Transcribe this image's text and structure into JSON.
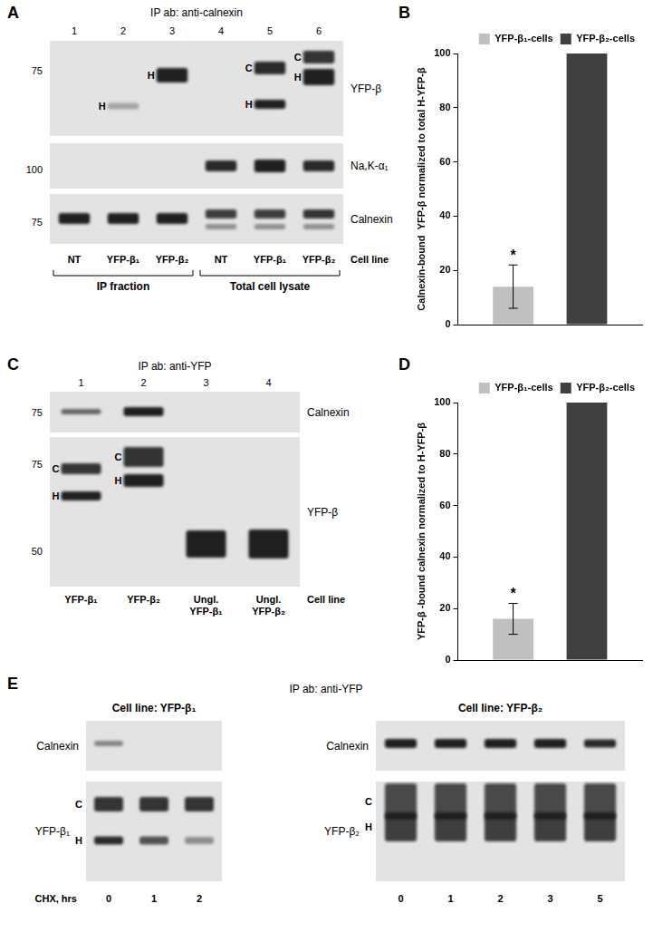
{
  "panels": [
    {
      "letter": "A",
      "title": "IP ab: anti-calnexin",
      "lanes": [
        1,
        2,
        3,
        4,
        5,
        6
      ],
      "strips": [
        {
          "name": "YFP-β",
          "markers": [
            75
          ],
          "band_lanes": [
            2,
            3,
            5,
            6
          ],
          "band_letters": [
            [],
            [
              "H"
            ],
            [
              "H"
            ],
            [],
            [
              "C",
              "H"
            ],
            [
              "C",
              "H"
            ]
          ]
        },
        {
          "name": "Na,K-α₁",
          "markers": [
            100
          ],
          "band_lanes": [
            4,
            5,
            6
          ]
        },
        {
          "name": "Calnexin",
          "markers": [
            75
          ],
          "band_lanes": [
            1,
            2,
            3,
            4,
            5,
            6
          ]
        }
      ],
      "cell_lines": [
        "NT",
        "YFP-β₁",
        "YFP-β₂",
        "NT",
        "YFP-β₁",
        "YFP-β₂"
      ],
      "cell_line_label": "Cell line",
      "groups": [
        {
          "label": "IP fraction",
          "lanes": [
            1,
            2,
            3
          ]
        },
        {
          "label": "Total cell lysate",
          "lanes": [
            4,
            5,
            6
          ]
        }
      ]
    },
    {
      "letter": "C",
      "title": "IP ab: anti-YFP",
      "lanes": [
        1,
        2,
        3,
        4
      ],
      "strips": [
        {
          "name": "Calnexin",
          "markers": [
            75
          ],
          "band_lanes": [
            1,
            2
          ]
        },
        {
          "name": "YFP-β",
          "markers": [
            75,
            50
          ],
          "band_lanes": [
            1,
            2,
            3,
            4
          ],
          "band_letters": [
            [
              "C",
              "H"
            ],
            [
              "C",
              "H"
            ],
            [],
            []
          ]
        }
      ],
      "cell_lines": [
        "YFP-β₁",
        "YFP-β₂",
        "Ungl. YFP-β₁",
        "Ungl. YFP-β₂"
      ],
      "cell_line_label": "Cell line"
    },
    {
      "letter": "E",
      "title": "IP ab: anti-YFP",
      "time_label": "CHX, hrs",
      "blots": [
        {
          "title": "Cell line: YFP-β₁",
          "times": [
            0,
            1,
            2
          ],
          "strips": [
            {
              "name": "Calnexin",
              "band_lanes": [
                1
              ]
            },
            {
              "name": "YFP-β₁",
              "band_lanes": [
                1,
                2,
                3
              ],
              "letters": [
                "C",
                "H"
              ]
            }
          ]
        },
        {
          "title": "Cell line: YFP-β₂",
          "times": [
            0,
            1,
            2,
            3,
            5
          ],
          "strips": [
            {
              "name": "Calnexin",
              "band_lanes": [
                1,
                2,
                3,
                4,
                5
              ]
            },
            {
              "name": "YFP-β₂",
              "band_lanes": [
                1,
                2,
                3,
                4,
                5
              ],
              "letters": [
                "C",
                "H"
              ]
            }
          ]
        }
      ]
    }
  ],
  "chart_data": [
    {
      "panel": "B",
      "type": "bar",
      "ylabel": "Calnexin-bound  YFP-β normalized to total H-YFP-β",
      "categories": [
        null
      ],
      "series": [
        {
          "name": "YFP-β₁-cells",
          "color": "#c0c0c0",
          "values": [
            14
          ],
          "errors": [
            8
          ],
          "annotation": "*"
        },
        {
          "name": "YFP-β₂-cells",
          "color": "#404040",
          "values": [
            100
          ]
        }
      ],
      "ylim": [
        0,
        100
      ],
      "yticks": [
        0,
        20,
        40,
        60,
        80,
        100
      ],
      "grid": false,
      "legend": "top-right",
      "tick_labels": "y"
    },
    {
      "panel": "D",
      "type": "bar",
      "ylabel": "YFP-β -bound calnexin normalized to H-YFP-β",
      "categories": [
        null
      ],
      "series": [
        {
          "name": "YFP-β₁-cells",
          "color": "#c0c0c0",
          "values": [
            16
          ],
          "errors": [
            6
          ],
          "annotation": "*"
        },
        {
          "name": "YFP-β₂-cells",
          "color": "#404040",
          "values": [
            100
          ]
        }
      ],
      "ylim": [
        0,
        100
      ],
      "yticks": [
        0,
        20,
        40,
        60,
        80,
        100
      ],
      "grid": false,
      "legend": "top-right",
      "tick_labels": "y"
    }
  ]
}
